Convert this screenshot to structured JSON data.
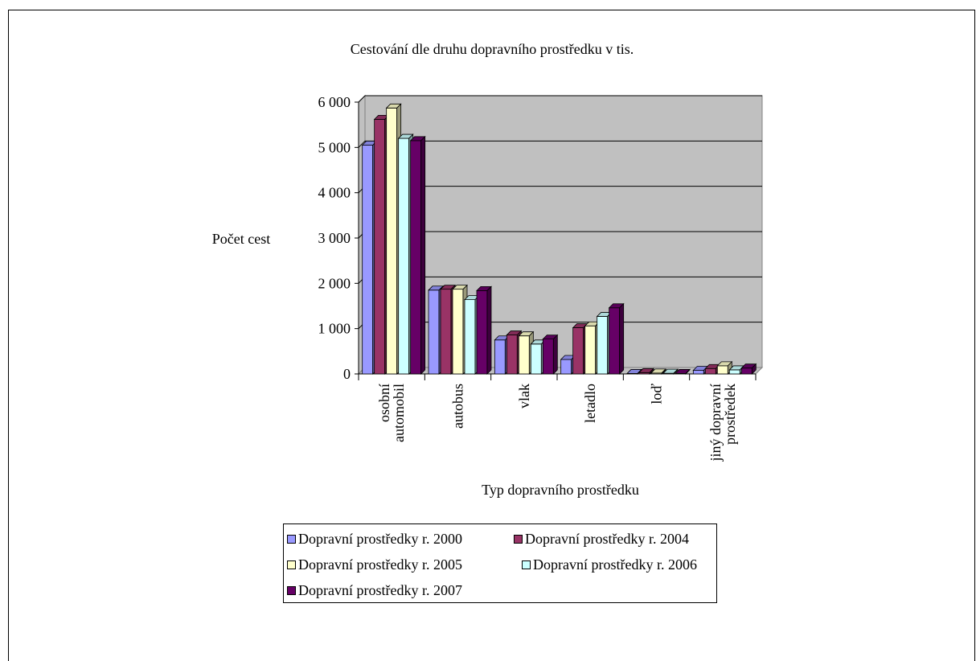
{
  "chart_data": {
    "type": "bar",
    "title": "Cestování dle druhu dopravního prostředku v tis.",
    "xlabel": "Typ dopravního prostředku",
    "ylabel": "Počet cest",
    "ylim": [
      0,
      6000
    ],
    "yticks": [
      "0",
      "1 000",
      "2 000",
      "3 000",
      "4 000",
      "5 000",
      "6 000"
    ],
    "grid": true,
    "legend_position": "bottom",
    "categories": [
      [
        "osobní",
        "automobil"
      ],
      [
        "autobus"
      ],
      [
        "vlak"
      ],
      [
        "letadlo"
      ],
      [
        "loď"
      ],
      [
        "jiný dopravní",
        "prostředek"
      ]
    ],
    "series": [
      {
        "name": "Dopravní prostředky r. 2000",
        "color": "#9999ff",
        "values": [
          5050,
          1850,
          750,
          320,
          10,
          80
        ]
      },
      {
        "name": "Dopravní prostředky r. 2004",
        "color": "#993366",
        "values": [
          5620,
          1870,
          860,
          1020,
          30,
          120
        ]
      },
      {
        "name": "Dopravní prostředky r. 2005",
        "color": "#ffffcc",
        "values": [
          5870,
          1870,
          840,
          1060,
          20,
          180
        ]
      },
      {
        "name": "Dopravní prostředky r. 2006",
        "color": "#ccffff",
        "values": [
          5200,
          1640,
          660,
          1270,
          15,
          90
        ]
      },
      {
        "name": "Dopravní prostředky r. 2007",
        "color": "#660066",
        "values": [
          5150,
          1840,
          770,
          1460,
          10,
          130
        ]
      }
    ]
  }
}
